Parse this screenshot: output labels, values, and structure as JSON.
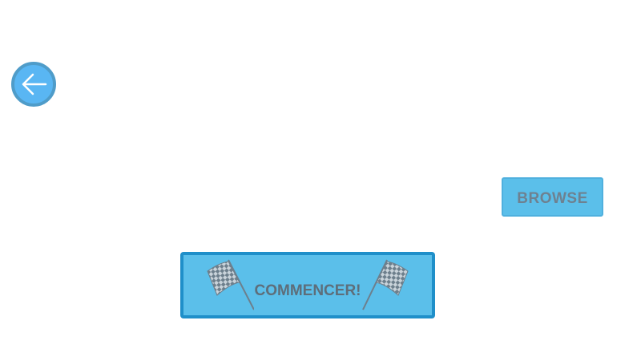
{
  "navigation": {
    "back_icon": "arrow-left-icon"
  },
  "actions": {
    "browse_label": "BROWSE",
    "start_label": "COMMENCER!",
    "start_icon": "checkered-flag-icon"
  },
  "colors": {
    "button_fill": "#5bbfea",
    "start_border": "#1f8fc9",
    "back_fill": "#59b6f3",
    "back_border": "#4f9cc9",
    "label_text": "#6e8190"
  }
}
